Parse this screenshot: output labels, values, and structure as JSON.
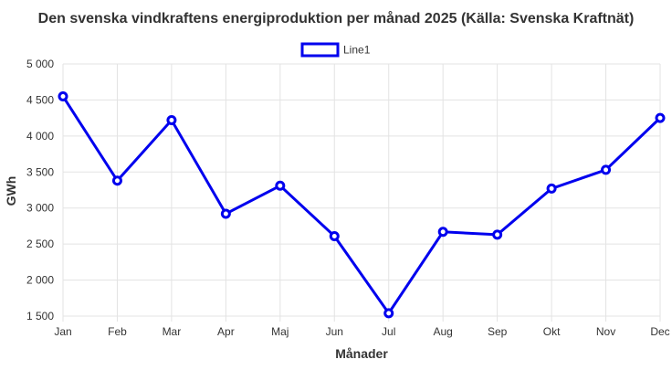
{
  "chart_data": {
    "type": "line",
    "title": "Den svenska vindkraftens energiproduktion per månad 2025 (Källa: Svenska Kraftnät)",
    "xlabel": "Månader",
    "ylabel": "GWh",
    "categories": [
      "Jan",
      "Feb",
      "Mar",
      "Apr",
      "Maj",
      "Jun",
      "Jul",
      "Aug",
      "Sep",
      "Okt",
      "Nov",
      "Dec"
    ],
    "series": [
      {
        "name": "Line1",
        "color": "#0000ee",
        "values": [
          4550,
          3380,
          4220,
          2920,
          3310,
          2610,
          1540,
          2670,
          2630,
          3270,
          3530,
          4250
        ]
      }
    ],
    "ylim": [
      1500,
      5000
    ],
    "yticks": [
      "1 500",
      "2 000",
      "2 500",
      "3 000",
      "3 500",
      "4 000",
      "4 500",
      "5 000"
    ],
    "grid": true,
    "legend": "top-center"
  }
}
